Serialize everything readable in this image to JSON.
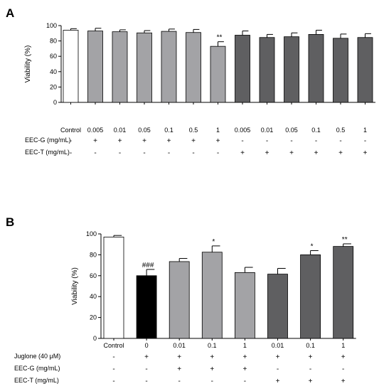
{
  "chart_data": [
    {
      "panel": "A",
      "type": "bar",
      "ylabel": "Viability (%)",
      "ylim": [
        0,
        100
      ],
      "yticks": [
        "0",
        "20",
        "40",
        "60",
        "80",
        "100"
      ],
      "categories": [
        "Control",
        "0.005",
        "0.01",
        "0.05",
        "0.1",
        "0.5",
        "1",
        "0.005",
        "0.01",
        "0.05",
        "0.1",
        "0.5",
        "1"
      ],
      "values": [
        94,
        93,
        92,
        90.5,
        92.5,
        91,
        73,
        87.5,
        84.5,
        85.5,
        88.5,
        83.5,
        84.5
      ],
      "errors": [
        2,
        3.5,
        2.5,
        3,
        3,
        4,
        6,
        5.5,
        4,
        5,
        5.5,
        5.5,
        5
      ],
      "groups": [
        "control",
        "EEC-G",
        "EEC-G",
        "EEC-G",
        "EEC-G",
        "EEC-G",
        "EEC-G",
        "EEC-T",
        "EEC-T",
        "EEC-T",
        "EEC-T",
        "EEC-T",
        "EEC-T"
      ],
      "annotations": [
        "",
        "",
        "",
        "",
        "",
        "",
        "**",
        "",
        "",
        "",
        "",
        "",
        ""
      ],
      "conditions": [
        {
          "label": "EEC-G (mg/mL)",
          "signs": [
            "-",
            "+",
            "+",
            "+",
            "+",
            "+",
            "+",
            "-",
            "-",
            "-",
            "-",
            "-",
            "-"
          ]
        },
        {
          "label": "EEC-T (mg/mL)",
          "signs": [
            "-",
            "-",
            "-",
            "-",
            "-",
            "-",
            "-",
            "+",
            "+",
            "+",
            "+",
            "+",
            "+"
          ]
        }
      ],
      "grid": false,
      "colors": {
        "control": "#ffffff",
        "EEC-G": "#a3a3a6",
        "EEC-T": "#5f5f61"
      }
    },
    {
      "panel": "B",
      "type": "bar",
      "ylabel": "Viability (%)",
      "ylim": [
        0,
        100
      ],
      "yticks": [
        "0",
        "20",
        "40",
        "60",
        "80",
        "100"
      ],
      "categories": [
        "Control",
        "0",
        "0.01",
        "0.1",
        "1",
        "0.01",
        "0.1",
        "1"
      ],
      "values": [
        97,
        60,
        73.5,
        82.5,
        63,
        61.5,
        80,
        88
      ],
      "errors": [
        1.5,
        6,
        3,
        6,
        5,
        5.5,
        4,
        2.5
      ],
      "groups": [
        "control",
        "juglone",
        "EEC-G",
        "EEC-G",
        "EEC-G",
        "EEC-T",
        "EEC-T",
        "EEC-T"
      ],
      "annotations": [
        "",
        "###",
        "",
        "*",
        "",
        "",
        "*",
        "**"
      ],
      "conditions": [
        {
          "label": "Juglone (40 μM)",
          "signs": [
            "-",
            "+",
            "+",
            "+",
            "+",
            "+",
            "+",
            "+"
          ]
        },
        {
          "label": "EEC-G (mg/mL)",
          "signs": [
            "-",
            "-",
            "+",
            "+",
            "+",
            "-",
            "-",
            "-"
          ]
        },
        {
          "label": "EEC-T (mg/mL)",
          "signs": [
            "-",
            "-",
            "-",
            "-",
            "-",
            "+",
            "+",
            "+"
          ]
        }
      ],
      "grid": false,
      "colors": {
        "control": "#ffffff",
        "juglone": "#000000",
        "EEC-G": "#a3a3a6",
        "EEC-T": "#5f5f61"
      }
    }
  ],
  "panels": [
    {
      "label": "A"
    },
    {
      "label": "B"
    }
  ]
}
